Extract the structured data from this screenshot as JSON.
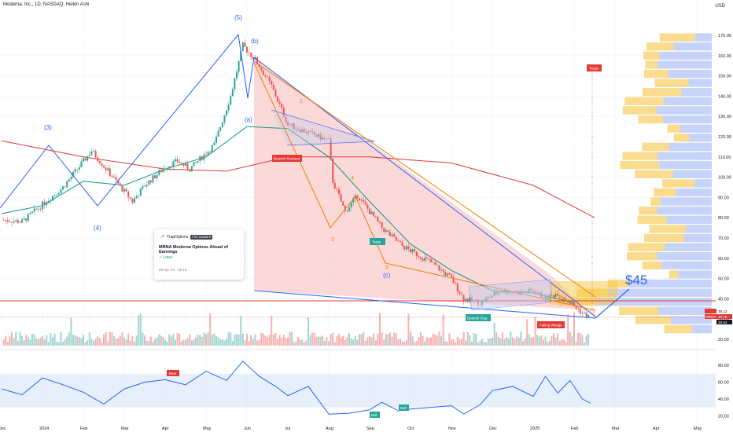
{
  "header": {
    "title": "Moderna, Inc., 1D, NASDAQ, Heikin Ashi",
    "currency": "USD"
  },
  "price_axis": {
    "labels": [
      "170.00",
      "160.00",
      "150.00",
      "140.00",
      "130.00",
      "120.00",
      "110.00",
      "100.00",
      "90.00",
      "80.00",
      "70.00",
      "60.00",
      "50.00",
      "40.00",
      "30.00",
      "20.00"
    ]
  },
  "rsi_axis": {
    "labels": [
      "80.00",
      "60.00",
      "40.00",
      "20.00"
    ]
  },
  "time_axis": {
    "labels": [
      "Dec",
      "2024",
      "Feb",
      "Mar",
      "Apr",
      "May",
      "Jun",
      "Jul",
      "Aug",
      "Sep",
      "Oct",
      "Nov",
      "Dec",
      "2025",
      "Feb",
      "Mar",
      "Apr",
      "May"
    ]
  },
  "waves": {
    "w5": "(5)",
    "wb": "(b)",
    "w3": "(3)",
    "w4": "(4)",
    "wa": "(a)",
    "wc": "(c)",
    "o2": "2",
    "o3": "3",
    "o4": "4",
    "o5": "5"
  },
  "tags": {
    "target": "Target",
    "pennant": "Bearish Pennant",
    "targ2": "Targe",
    "bearish_flag": "Bearish Flag",
    "wedge": "Falling Wedge",
    "rsi_bear": "Bear",
    "rsi_bull1": "Bull",
    "rsi_bull2": "Bull"
  },
  "annotation": {
    "price_target": "$45"
  },
  "idea_card": {
    "brand": "TrapOptions",
    "badge": "PRO MEMBER",
    "title": "MRNA Moderna Options Ahead of Earnings",
    "direction": "LONG",
    "date": "29 Apr '24 · 09:18"
  },
  "price_tags": {
    "current": "30.75",
    "high": "38.12",
    "low": "30.54",
    "ticker": "MRNA"
  },
  "colors": {
    "up": "#26a69a",
    "down": "#ef5350",
    "elliott": "#2962ff",
    "minor": "#f57c00",
    "ema_short": "#089981",
    "ema_long": "#e53935",
    "rsi": "#2962ff",
    "vp_up": "#f7c544",
    "vp_down": "#8ea9f5"
  },
  "chart_data": {
    "type": "candlestick",
    "chart_kind": "heikin-ashi",
    "symbol": "MRNA",
    "title": "Moderna, Inc., 1D, NASDAQ, Heikin Ashi",
    "currency": "USD",
    "ylim": [
      20,
      175
    ],
    "y_ticks": [
      170,
      160,
      150,
      140,
      130,
      120,
      110,
      100,
      90,
      80,
      70,
      60,
      50,
      40,
      30,
      20
    ],
    "x_ticks": [
      "Dec",
      "2024",
      "Feb",
      "Mar",
      "Apr",
      "May",
      "Jun",
      "Jul",
      "Aug",
      "Sep",
      "Oct",
      "Nov",
      "Dec",
      "2025",
      "Feb",
      "Mar",
      "Apr",
      "May"
    ],
    "price_path": [
      {
        "t": 0,
        "c": 79
      },
      {
        "t": 0.5,
        "c": 78
      },
      {
        "t": 1.5,
        "c": 95
      },
      {
        "t": 2.2,
        "c": 113
      },
      {
        "t": 2.6,
        "c": 103
      },
      {
        "t": 3.2,
        "c": 88
      },
      {
        "t": 3.5,
        "c": 96
      },
      {
        "t": 4.0,
        "c": 105
      },
      {
        "t": 4.3,
        "c": 108
      },
      {
        "t": 4.6,
        "c": 104
      },
      {
        "t": 5.2,
        "c": 116
      },
      {
        "t": 5.6,
        "c": 140
      },
      {
        "t": 5.9,
        "c": 165
      },
      {
        "t": 6.2,
        "c": 158
      },
      {
        "t": 6.6,
        "c": 145
      },
      {
        "t": 7.0,
        "c": 126
      },
      {
        "t": 7.5,
        "c": 122
      },
      {
        "t": 8.0,
        "c": 118
      },
      {
        "t": 8.1,
        "c": 98
      },
      {
        "t": 8.4,
        "c": 83
      },
      {
        "t": 8.7,
        "c": 91
      },
      {
        "t": 9.0,
        "c": 83
      },
      {
        "t": 9.3,
        "c": 75
      },
      {
        "t": 9.8,
        "c": 66
      },
      {
        "t": 10.5,
        "c": 58
      },
      {
        "t": 11.0,
        "c": 50
      },
      {
        "t": 11.3,
        "c": 40
      },
      {
        "t": 11.7,
        "c": 38
      },
      {
        "t": 12.2,
        "c": 44
      },
      {
        "t": 12.7,
        "c": 43
      },
      {
        "t": 13.0,
        "c": 44
      },
      {
        "t": 13.3,
        "c": 40
      },
      {
        "t": 13.6,
        "c": 43
      },
      {
        "t": 13.9,
        "c": 38
      },
      {
        "t": 14.2,
        "c": 33
      },
      {
        "t": 14.4,
        "c": 30.75
      }
    ],
    "indicators": [
      {
        "name": "EMA short",
        "points": [
          {
            "t": 0,
            "c": 82
          },
          {
            "t": 1,
            "c": 86
          },
          {
            "t": 2,
            "c": 98
          },
          {
            "t": 3,
            "c": 96
          },
          {
            "t": 4,
            "c": 104
          },
          {
            "t": 5,
            "c": 110
          },
          {
            "t": 6,
            "c": 125
          },
          {
            "t": 7,
            "c": 124
          },
          {
            "t": 8,
            "c": 110
          },
          {
            "t": 9,
            "c": 88
          },
          {
            "t": 10,
            "c": 67
          },
          {
            "t": 11,
            "c": 54
          },
          {
            "t": 12,
            "c": 44
          },
          {
            "t": 13,
            "c": 43
          },
          {
            "t": 14,
            "c": 38
          }
        ]
      },
      {
        "name": "EMA long",
        "points": [
          {
            "t": 0,
            "c": 118
          },
          {
            "t": 2,
            "c": 110
          },
          {
            "t": 4,
            "c": 104
          },
          {
            "t": 5.5,
            "c": 103
          },
          {
            "t": 7,
            "c": 110
          },
          {
            "t": 9,
            "c": 110
          },
          {
            "t": 11,
            "c": 107
          },
          {
            "t": 13,
            "c": 96
          },
          {
            "t": 14.5,
            "c": 80
          }
        ]
      }
    ],
    "horizontal_levels": [
      {
        "name": "red line",
        "y": 38.5
      },
      {
        "name": "current",
        "y": 30.75
      }
    ],
    "annotations": [
      "$45",
      "Target",
      "Bearish Pennant",
      "Falling Wedge",
      "Bearish Flag"
    ],
    "rsi": {
      "ylim": [
        10,
        90
      ],
      "y_ticks": [
        80,
        60,
        40,
        20
      ],
      "band": [
        30,
        70
      ],
      "points": [
        {
          "t": 0,
          "v": 52
        },
        {
          "t": 0.5,
          "v": 45
        },
        {
          "t": 1,
          "v": 65
        },
        {
          "t": 1.5,
          "v": 57
        },
        {
          "t": 2,
          "v": 48
        },
        {
          "t": 2.5,
          "v": 34
        },
        {
          "t": 3,
          "v": 52
        },
        {
          "t": 3.5,
          "v": 60
        },
        {
          "t": 4,
          "v": 63
        },
        {
          "t": 4.5,
          "v": 57
        },
        {
          "t": 5,
          "v": 73
        },
        {
          "t": 5.5,
          "v": 62
        },
        {
          "t": 5.9,
          "v": 85
        },
        {
          "t": 6.3,
          "v": 67
        },
        {
          "t": 6.7,
          "v": 55
        },
        {
          "t": 7,
          "v": 44
        },
        {
          "t": 7.5,
          "v": 55
        },
        {
          "t": 8,
          "v": 22
        },
        {
          "t": 8.5,
          "v": 23
        },
        {
          "t": 9,
          "v": 27
        },
        {
          "t": 9.3,
          "v": 36
        },
        {
          "t": 9.7,
          "v": 26
        },
        {
          "t": 10,
          "v": 28
        },
        {
          "t": 10.5,
          "v": 30
        },
        {
          "t": 11,
          "v": 32
        },
        {
          "t": 11.3,
          "v": 22
        },
        {
          "t": 11.7,
          "v": 33
        },
        {
          "t": 12,
          "v": 50
        },
        {
          "t": 12.5,
          "v": 55
        },
        {
          "t": 13,
          "v": 43
        },
        {
          "t": 13.3,
          "v": 67
        },
        {
          "t": 13.6,
          "v": 47
        },
        {
          "t": 13.9,
          "v": 62
        },
        {
          "t": 14.2,
          "v": 40
        },
        {
          "t": 14.4,
          "v": 35
        }
      ]
    }
  }
}
